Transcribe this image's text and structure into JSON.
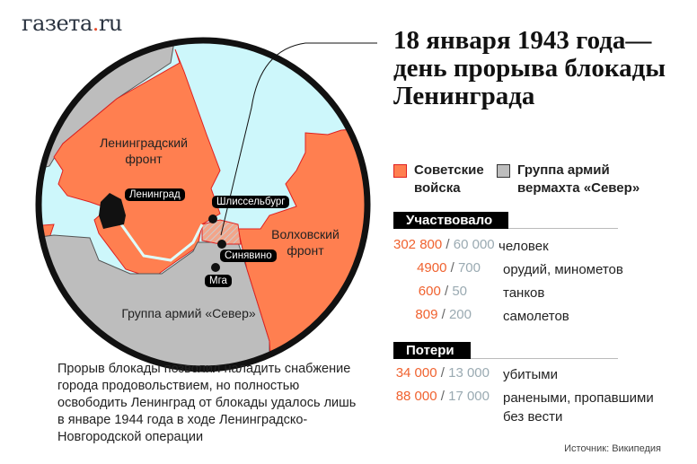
{
  "logo": {
    "text": "газета",
    "dot": ".",
    "tail": "ru"
  },
  "title": "18 января 1943 года— день прорыва блокады Ленинграда",
  "legend": [
    {
      "label_line1": "Советские",
      "label_line2": "войска",
      "color": "#ff7f50"
    },
    {
      "label_line1": "Группа армий",
      "label_line2": "вермахта «Север»",
      "color": "#bdbdbd"
    }
  ],
  "map": {
    "leningrad_front": "Ленинградский",
    "leningrad_front2": "фронт",
    "volkhov_front": "Волховский",
    "volkhov_front2": "фронт",
    "army_north": "Группа армий «Север»",
    "cities": {
      "leningrad": "Ленинград",
      "shlisselburg": "Шлиссельбург",
      "sinyavino": "Синявино",
      "mga": "Мга"
    }
  },
  "participated": {
    "header": "Участвовало",
    "rows": [
      {
        "soviet": "302 800",
        "german": "60 000",
        "label": "человек"
      },
      {
        "soviet": "4900",
        "german": "700",
        "label": "орудий, минометов"
      },
      {
        "soviet": "600",
        "german": "50",
        "label": "танков"
      },
      {
        "soviet": "809",
        "german": "200",
        "label": "самолетов"
      }
    ]
  },
  "losses": {
    "header": "Потери",
    "rows": [
      {
        "soviet": "34 000",
        "german": "13 000",
        "label": "убитыми"
      },
      {
        "soviet": "88 000",
        "german": "17 000",
        "label": "ранеными, пропавшими без вести"
      }
    ]
  },
  "note": "Прорыв блокады позволил наладить снабжение города продовольствием, но полностью освободить Ленинград от блокады удалось лишь в январе 1944 года в ходе Ленинградско-Новгородской операции",
  "source": "Источник: Википедия"
}
